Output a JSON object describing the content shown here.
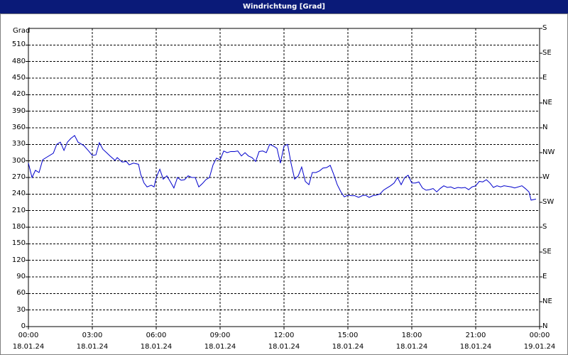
{
  "chart_data": {
    "type": "line",
    "title": "Windrichtung [Grad]",
    "y_axis_label": "Grad",
    "xlim": [
      0,
      24
    ],
    "xticks": [
      {
        "value": 0,
        "label": "00:00\n18.01.24"
      },
      {
        "value": 3,
        "label": "03:00\n18.01.24"
      },
      {
        "value": 6,
        "label": "06:00\n18.01.24"
      },
      {
        "value": 9,
        "label": "09:00\n18.01.24"
      },
      {
        "value": 12,
        "label": "12:00\n18.01.24"
      },
      {
        "value": 15,
        "label": "15:00\n18.01.24"
      },
      {
        "value": 18,
        "label": "18:00\n18.01.24"
      },
      {
        "value": 21,
        "label": "21:00\n18.01.24"
      },
      {
        "value": 24,
        "label": "00:00\n19.01.24"
      }
    ],
    "ylim": [
      0,
      540
    ],
    "yticks": [
      0,
      30,
      60,
      90,
      120,
      150,
      180,
      210,
      240,
      270,
      300,
      330,
      360,
      390,
      420,
      450,
      480,
      510
    ],
    "y2lim": [
      0,
      540
    ],
    "y2ticks": [
      {
        "value": 0,
        "label": "N"
      },
      {
        "value": 45,
        "label": "NE"
      },
      {
        "value": 90,
        "label": "E"
      },
      {
        "value": 135,
        "label": "SE"
      },
      {
        "value": 180,
        "label": "S"
      },
      {
        "value": 225,
        "label": "SW"
      },
      {
        "value": 270,
        "label": "W"
      },
      {
        "value": 315,
        "label": "NW"
      },
      {
        "value": 360,
        "label": "N"
      },
      {
        "value": 405,
        "label": "NE"
      },
      {
        "value": 450,
        "label": "E"
      },
      {
        "value": 495,
        "label": "SE"
      },
      {
        "value": 540,
        "label": "S"
      }
    ],
    "grid": true,
    "color": "#0000cc",
    "x": [
      0,
      0.17,
      0.33,
      0.5,
      0.67,
      0.83,
      1.17,
      1.33,
      1.5,
      1.67,
      1.83,
      2,
      2.17,
      2.33,
      2.6,
      2.83,
      3,
      3.17,
      3.33,
      3.5,
      3.67,
      3.83,
      4.07,
      4.17,
      4.4,
      4.6,
      4.73,
      4.93,
      5.17,
      5.27,
      5.43,
      5.57,
      5.77,
      5.9,
      6,
      6.17,
      6.33,
      6.5,
      6.67,
      6.83,
      7,
      7.17,
      7.33,
      7.5,
      7.67,
      7.83,
      8,
      8.17,
      8.33,
      8.5,
      8.67,
      8.83,
      9,
      9.17,
      9.33,
      9.5,
      9.67,
      9.83,
      10,
      10.17,
      10.33,
      10.5,
      10.67,
      10.83,
      11,
      11.17,
      11.33,
      11.5,
      11.67,
      11.83,
      12,
      12.17,
      12.33,
      12.5,
      12.67,
      12.83,
      13,
      13.17,
      13.33,
      13.5,
      13.67,
      13.83,
      14,
      14.17,
      14.33,
      14.5,
      14.67,
      14.83,
      15,
      15.17,
      15.33,
      15.5,
      15.67,
      15.83,
      16,
      16.17,
      16.33,
      16.5,
      16.67,
      16.83,
      17,
      17.17,
      17.33,
      17.5,
      17.67,
      17.83,
      18,
      18.17,
      18.33,
      18.5,
      18.67,
      18.83,
      19,
      19.17,
      19.33,
      19.5,
      19.67,
      19.83,
      20,
      20.17,
      20.33,
      20.5,
      20.67,
      20.83,
      21,
      21.17,
      21.33,
      21.5,
      21.67,
      21.83,
      22,
      22.17,
      22.33,
      22.67,
      22.83,
      23.17,
      23.33,
      23.5,
      23.6,
      23.83
    ],
    "values": [
      296,
      270,
      283,
      279,
      302,
      306,
      314,
      330,
      334,
      319,
      334,
      341,
      346,
      334,
      328,
      318,
      310,
      311,
      333,
      321,
      315,
      309,
      301,
      306,
      298,
      299,
      293,
      296,
      294,
      276,
      260,
      253,
      256,
      253,
      270,
      285,
      267,
      273,
      262,
      251,
      270,
      265,
      266,
      273,
      270,
      270,
      253,
      259,
      266,
      270,
      293,
      305,
      302,
      318,
      315,
      317,
      317,
      318,
      309,
      315,
      309,
      306,
      299,
      317,
      318,
      315,
      330,
      327,
      323,
      296,
      327,
      330,
      296,
      267,
      273,
      289,
      263,
      257,
      279,
      279,
      282,
      287,
      288,
      292,
      276,
      257,
      244,
      235,
      238,
      237,
      237,
      234,
      237,
      238,
      234,
      237,
      238,
      240,
      247,
      251,
      255,
      260,
      270,
      257,
      270,
      274,
      260,
      260,
      262,
      251,
      247,
      248,
      250,
      244,
      250,
      255,
      252,
      253,
      250,
      252,
      251,
      252,
      248,
      253,
      255,
      263,
      262,
      266,
      260,
      252,
      255,
      253,
      255,
      253,
      251,
      255,
      250,
      244,
      229,
      231
    ]
  }
}
